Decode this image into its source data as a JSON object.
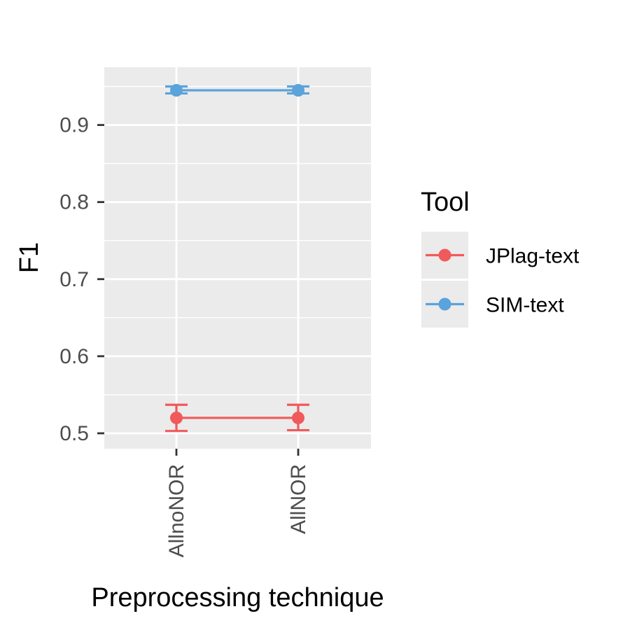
{
  "chart_data": {
    "type": "line",
    "categories": [
      "AllnoNOR",
      "AllNOR"
    ],
    "series": [
      {
        "name": "JPlag-text",
        "color": "#F05A5A",
        "values": [
          0.52,
          0.52
        ],
        "error_low": [
          0.503,
          0.504
        ],
        "error_high": [
          0.537,
          0.537
        ]
      },
      {
        "name": "SIM-text",
        "color": "#5BA3DB",
        "values": [
          0.945,
          0.945
        ],
        "error_low": [
          0.941,
          0.941
        ],
        "error_high": [
          0.95,
          0.95
        ]
      }
    ],
    "title": "",
    "xlabel": "Preprocessing technique",
    "ylabel": "F1",
    "ylim": [
      0.48,
      0.975
    ],
    "yticks": [
      0.5,
      0.6,
      0.7,
      0.8,
      0.9
    ],
    "ytick_labels": [
      "0.5",
      "0.6",
      "0.7",
      "0.8",
      "0.9"
    ],
    "legend_title": "Tool",
    "legend_placement": "right",
    "grid": true,
    "panel_color": "#EBEBEB",
    "grid_color": "#FFFFFF"
  }
}
